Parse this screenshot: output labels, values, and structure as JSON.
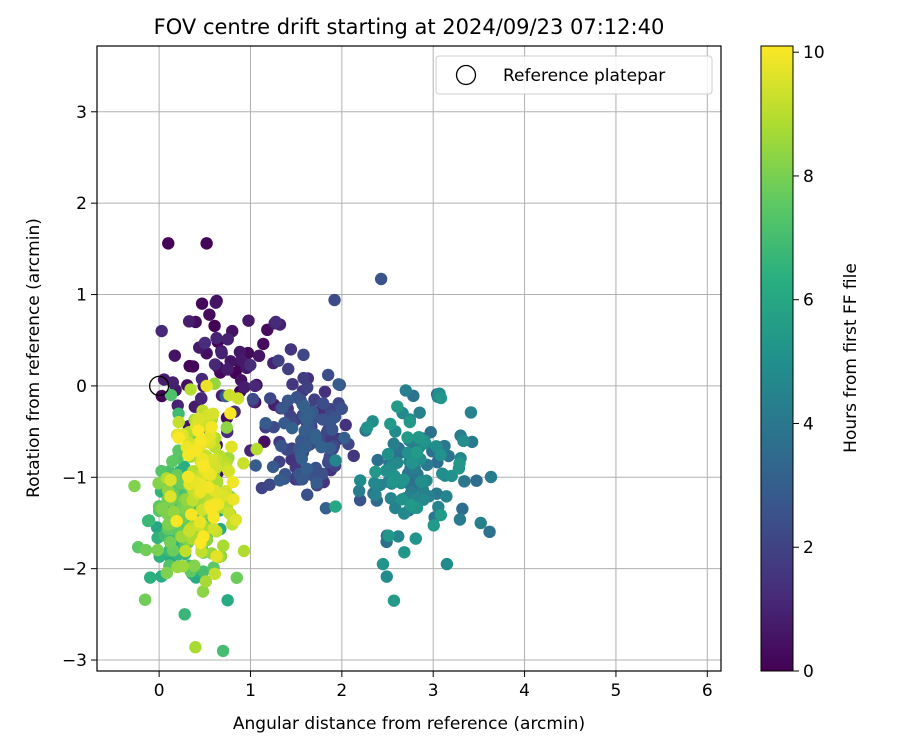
{
  "chart_data": {
    "type": "scatter",
    "title": "FOV centre drift starting at 2024/09/23 07:12:40",
    "xlabel": "Angular distance from reference (arcmin)",
    "ylabel": "Rotation from reference (arcmin)",
    "xlim": [
      -0.68,
      6.15
    ],
    "ylim": [
      -3.12,
      3.72
    ],
    "xticks": [
      0,
      1,
      2,
      3,
      4,
      5,
      6
    ],
    "yticks": [
      -3,
      -2,
      -1,
      0,
      1,
      2,
      3
    ],
    "grid": true,
    "legend": {
      "placement": "top-right",
      "label": "Reference platepar"
    },
    "reference_point": {
      "x": 0,
      "y": 0
    },
    "colorbar": {
      "label": "Hours from first FF file",
      "colormap": "viridis",
      "range": [
        0,
        10.1
      ],
      "ticks": [
        0,
        2,
        4,
        6,
        8,
        10
      ]
    },
    "clusters": [
      {
        "hours": [
          0.0,
          1.3
        ],
        "x_center": 0.75,
        "x_spread": 0.35,
        "y_center": 0.1,
        "y_spread": 0.4,
        "count": 60
      },
      {
        "hours": [
          1.3,
          3.2
        ],
        "x_center": 1.6,
        "x_spread": 0.25,
        "y_center": -0.55,
        "y_spread": 0.38,
        "count": 120
      },
      {
        "hours": [
          3.5,
          5.5
        ],
        "x_center": 2.8,
        "x_spread": 0.3,
        "y_center": -0.9,
        "y_spread": 0.35,
        "count": 120
      },
      {
        "hours": [
          6.0,
          8.2
        ],
        "x_center": 0.3,
        "x_spread": 0.2,
        "y_center": -1.45,
        "y_spread": 0.35,
        "count": 170
      },
      {
        "hours": [
          8.2,
          10.1
        ],
        "x_center": 0.5,
        "x_spread": 0.18,
        "y_center": -1.05,
        "y_spread": 0.45,
        "count": 170
      }
    ],
    "points": [
      {
        "x": 0.1,
        "y": 1.56,
        "h": 0.1
      },
      {
        "x": 0.52,
        "y": 1.56,
        "h": 0.15
      },
      {
        "x": 0.47,
        "y": 0.9,
        "h": 0.2
      },
      {
        "x": 0.63,
        "y": 0.93,
        "h": 0.3
      },
      {
        "x": 0.4,
        "y": 0.7,
        "h": 0.4
      },
      {
        "x": 0.55,
        "y": 0.78,
        "h": 0.3
      },
      {
        "x": 0.8,
        "y": 0.6,
        "h": 0.5
      },
      {
        "x": 0.68,
        "y": 0.38,
        "h": 0.6
      },
      {
        "x": 0.9,
        "y": 0.28,
        "h": 0.7
      },
      {
        "x": 0.75,
        "y": 0.18,
        "h": 0.8
      },
      {
        "x": 1.25,
        "y": 0.25,
        "h": 1.0
      },
      {
        "x": 1.05,
        "y": 0.0,
        "h": 1.1
      },
      {
        "x": 1.92,
        "y": 0.94,
        "h": 2.3
      },
      {
        "x": 2.43,
        "y": 1.17,
        "h": 2.6
      },
      {
        "x": 1.58,
        "y": 0.34,
        "h": 2.2
      },
      {
        "x": 1.85,
        "y": 0.12,
        "h": 2.4
      },
      {
        "x": 2.0,
        "y": -0.25,
        "h": 2.5
      },
      {
        "x": 2.2,
        "y": -1.25,
        "h": 2.6
      },
      {
        "x": 2.7,
        "y": -0.05,
        "h": 4.3
      },
      {
        "x": 3.05,
        "y": -0.12,
        "h": 4.5
      },
      {
        "x": 3.52,
        "y": -1.5,
        "h": 4.4
      },
      {
        "x": 3.15,
        "y": -1.95,
        "h": 4.8
      },
      {
        "x": 2.45,
        "y": -1.95,
        "h": 5.2
      },
      {
        "x": 2.57,
        "y": -2.35,
        "h": 5.5
      },
      {
        "x": 1.93,
        "y": -1.32,
        "h": 6.0
      },
      {
        "x": 0.28,
        "y": -2.5,
        "h": 6.7
      },
      {
        "x": 0.7,
        "y": -2.9,
        "h": 7.0
      },
      {
        "x": 0.13,
        "y": -0.1,
        "h": 7.2
      },
      {
        "x": 0.48,
        "y": -2.25,
        "h": 8.3
      },
      {
        "x": 0.85,
        "y": -2.1,
        "h": 7.8
      },
      {
        "x": 0.52,
        "y": 0.0,
        "h": 9.8
      },
      {
        "x": 0.78,
        "y": -0.3,
        "h": 10.0
      },
      {
        "x": 0.77,
        "y": -0.1,
        "h": 9.3
      }
    ]
  }
}
